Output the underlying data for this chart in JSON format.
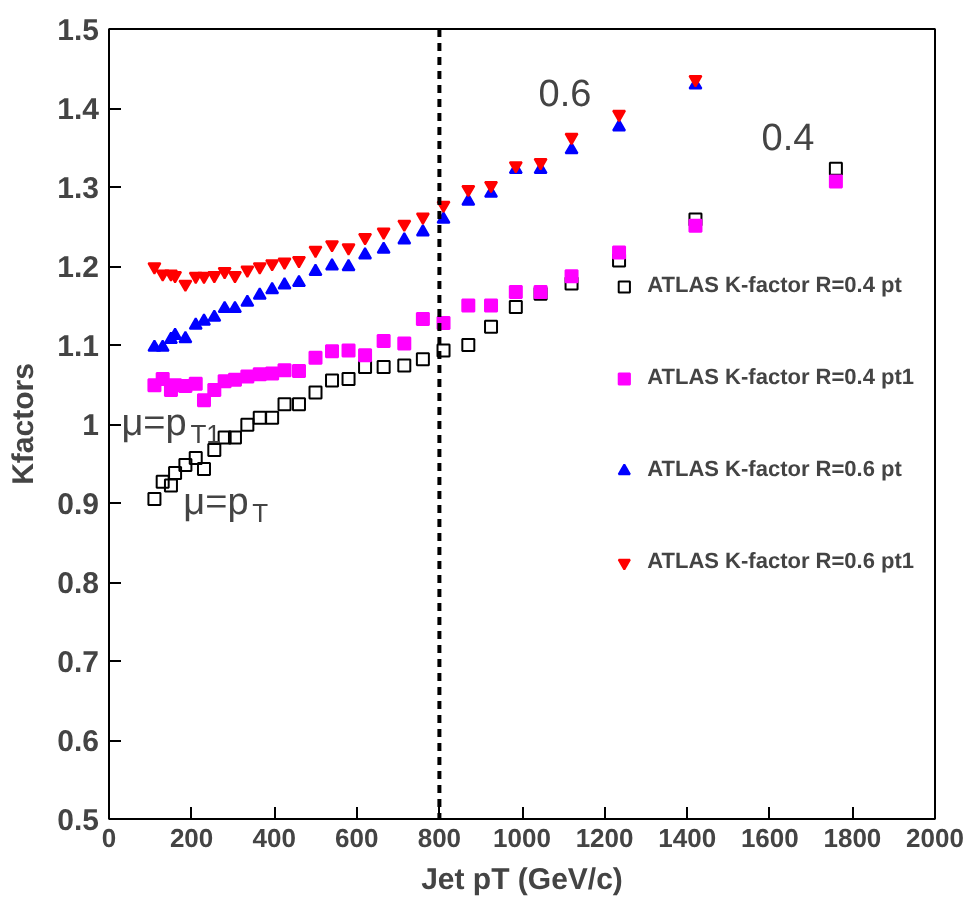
{
  "chart_data": {
    "type": "scatter",
    "xlabel": "Jet pT (GeV/c)",
    "ylabel": "Kfactors",
    "xlim": [
      0,
      2000
    ],
    "xticks": [
      0,
      200,
      400,
      600,
      800,
      1000,
      1200,
      1400,
      1600,
      1800,
      2000
    ],
    "ylim": [
      0.5,
      1.5
    ],
    "yticks": [
      0.5,
      0.6,
      0.7,
      0.8,
      0.9,
      1,
      1.1,
      1.2,
      1.3,
      1.4,
      1.5
    ],
    "grid": false,
    "legend": "right",
    "ref_lines": [
      {
        "axis": "x",
        "value": 800,
        "line_style": "dashed",
        "color": "#000000"
      }
    ],
    "annotations": [
      "0.6",
      "0.4",
      "μ=p$_{T1}$",
      "μ=p$_{T}$"
    ],
    "series": [
      {
        "name": "ATLAS K-factor R=0.4 pt",
        "color": "#000000",
        "marker": "square_open",
        "x": [
          110,
          130,
          150,
          160,
          185,
          210,
          230,
          255,
          280,
          305,
          335,
          365,
          395,
          425,
          460,
          500,
          540,
          580,
          620,
          665,
          715,
          760,
          810,
          870,
          925,
          985,
          1045,
          1120,
          1235,
          1420,
          1760
        ],
        "values": [
          0.905,
          0.927,
          0.922,
          0.938,
          0.948,
          0.957,
          0.943,
          0.967,
          0.983,
          0.983,
          0.999,
          1.008,
          1.008,
          1.025,
          1.025,
          1.04,
          1.055,
          1.057,
          1.072,
          1.072,
          1.074,
          1.082,
          1.093,
          1.1,
          1.123,
          1.148,
          1.165,
          1.178,
          1.207,
          1.259,
          1.323
        ]
      },
      {
        "name": "ATLAS K-factor R=0.4 pt1",
        "color": "#ff00ff",
        "marker": "square",
        "x": [
          110,
          130,
          150,
          160,
          185,
          210,
          230,
          255,
          280,
          305,
          335,
          365,
          395,
          425,
          460,
          500,
          540,
          580,
          620,
          665,
          715,
          760,
          810,
          870,
          925,
          985,
          1045,
          1120,
          1235,
          1420,
          1760
        ],
        "values": [
          1.049,
          1.057,
          1.043,
          1.049,
          1.048,
          1.051,
          1.03,
          1.043,
          1.054,
          1.056,
          1.06,
          1.063,
          1.064,
          1.068,
          1.067,
          1.084,
          1.092,
          1.093,
          1.087,
          1.105,
          1.102,
          1.133,
          1.128,
          1.15,
          1.15,
          1.167,
          1.167,
          1.187,
          1.217,
          1.251,
          1.307
        ]
      },
      {
        "name": "ATLAS K-factor R=0.6 pt",
        "color": "#0000ff",
        "marker": "triangle",
        "x": [
          110,
          130,
          150,
          160,
          185,
          210,
          230,
          255,
          280,
          305,
          335,
          365,
          395,
          425,
          460,
          500,
          540,
          580,
          620,
          665,
          715,
          760,
          810,
          870,
          925,
          985,
          1045,
          1120,
          1235,
          1420
        ],
        "values": [
          1.097,
          1.097,
          1.107,
          1.112,
          1.108,
          1.125,
          1.13,
          1.135,
          1.146,
          1.146,
          1.154,
          1.163,
          1.17,
          1.176,
          1.179,
          1.193,
          1.2,
          1.199,
          1.214,
          1.221,
          1.233,
          1.243,
          1.259,
          1.282,
          1.292,
          1.322,
          1.322,
          1.347,
          1.376,
          1.429
        ]
      },
      {
        "name": "ATLAS K-factor R=0.6 pt1",
        "color": "#ff0000",
        "x": [
          110,
          130,
          150,
          160,
          185,
          210,
          230,
          255,
          280,
          305,
          335,
          365,
          395,
          425,
          460,
          500,
          540,
          580,
          620,
          665,
          715,
          760,
          810,
          870,
          925,
          985,
          1045,
          1120,
          1235,
          1420
        ],
        "values": [
          1.199,
          1.19,
          1.19,
          1.188,
          1.177,
          1.187,
          1.187,
          1.188,
          1.193,
          1.188,
          1.195,
          1.199,
          1.203,
          1.205,
          1.207,
          1.22,
          1.227,
          1.223,
          1.236,
          1.243,
          1.253,
          1.262,
          1.277,
          1.297,
          1.302,
          1.327,
          1.331,
          1.363,
          1.392,
          1.436
        ]
      }
    ]
  }
}
